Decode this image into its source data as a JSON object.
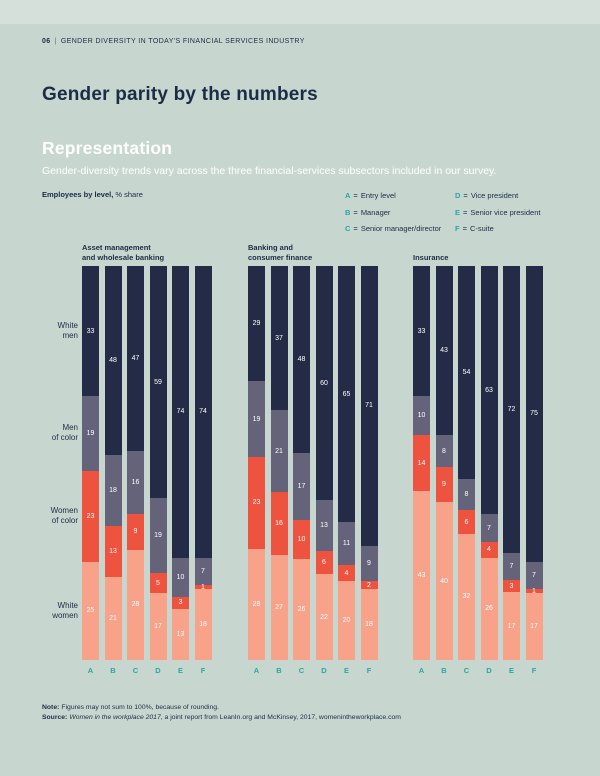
{
  "page": {
    "number": "06",
    "header_divider": "|",
    "header": "GENDER DIVERSITY IN TODAY'S FINANCIAL SERVICES INDUSTRY",
    "title": "Gender parity by the numbers"
  },
  "section": {
    "heading": "Representation",
    "subtitle": "Gender-diversity trends vary across the three financial-services subsectors included in our survey."
  },
  "chart_meta": {
    "label_bold": "Employees by level,",
    "label_rest": " % share"
  },
  "legend_separator": "=",
  "legend": [
    {
      "key": "A",
      "label": "Entry level"
    },
    {
      "key": "B",
      "label": "Manager"
    },
    {
      "key": "C",
      "label": "Senior manager/director"
    },
    {
      "key": "D",
      "label": "Vice president"
    },
    {
      "key": "E",
      "label": "Senior vice president"
    },
    {
      "key": "F",
      "label": "C-suite"
    }
  ],
  "colors": {
    "background": "#c7d7d0",
    "text": "#1d2b44",
    "accent_teal": "#2aa6a1",
    "white_men": "#232b46",
    "men_of_color": "#64637a",
    "women_of_color": "#ee5340",
    "white_women": "#f7a289"
  },
  "chart_data": {
    "type": "bar",
    "stacked": true,
    "title": "Employees by level, % share",
    "categories": [
      "A",
      "B",
      "C",
      "D",
      "E",
      "F"
    ],
    "series_keys": [
      "white_men",
      "men_of_color",
      "women_of_color",
      "white_women"
    ],
    "series_order_top_to_bottom": [
      "White men",
      "Men of color",
      "Women of color",
      "White women"
    ],
    "row_labels": [
      [
        "White",
        "men"
      ],
      [
        "Men",
        "of color"
      ],
      [
        "Women",
        "of color"
      ],
      [
        "White",
        "women"
      ]
    ],
    "groups": [
      {
        "title": [
          "Asset management",
          "and wholesale banking"
        ],
        "series": [
          {
            "name": "White men",
            "values": [
              33,
              48,
              47,
              59,
              74,
              74
            ]
          },
          {
            "name": "Men of color",
            "values": [
              19,
              18,
              16,
              19,
              10,
              7
            ]
          },
          {
            "name": "Women of color",
            "values": [
              23,
              13,
              9,
              5,
              3,
              1
            ]
          },
          {
            "name": "White women",
            "values": [
              25,
              21,
              28,
              17,
              13,
              18
            ]
          }
        ]
      },
      {
        "title": [
          "Banking and",
          "consumer finance"
        ],
        "series": [
          {
            "name": "White men",
            "values": [
              29,
              37,
              48,
              60,
              65,
              71
            ]
          },
          {
            "name": "Men of color",
            "values": [
              19,
              21,
              17,
              13,
              11,
              9
            ]
          },
          {
            "name": "Women of color",
            "values": [
              23,
              16,
              10,
              6,
              4,
              2
            ]
          },
          {
            "name": "White women",
            "values": [
              28,
              27,
              26,
              22,
              20,
              18
            ]
          }
        ]
      },
      {
        "title": [
          "Insurance"
        ],
        "series": [
          {
            "name": "White men",
            "values": [
              33,
              43,
              54,
              63,
              72,
              75
            ]
          },
          {
            "name": "Men of color",
            "values": [
              10,
              8,
              8,
              7,
              7,
              7
            ]
          },
          {
            "name": "Women of color",
            "values": [
              14,
              9,
              6,
              4,
              3,
              1
            ]
          },
          {
            "name": "White women",
            "values": [
              43,
              40,
              32,
              26,
              17,
              17
            ]
          }
        ]
      }
    ]
  },
  "footnote": {
    "note_label": "Note:",
    "note_text": "Figures may not sum to 100%, because of rounding.",
    "source_label": "Source:",
    "source_italic": "Women in the workplace 2017",
    "source_rest": ", a joint report from LeanIn.org and McKinsey, 2017, womenintheworkplace.com"
  }
}
